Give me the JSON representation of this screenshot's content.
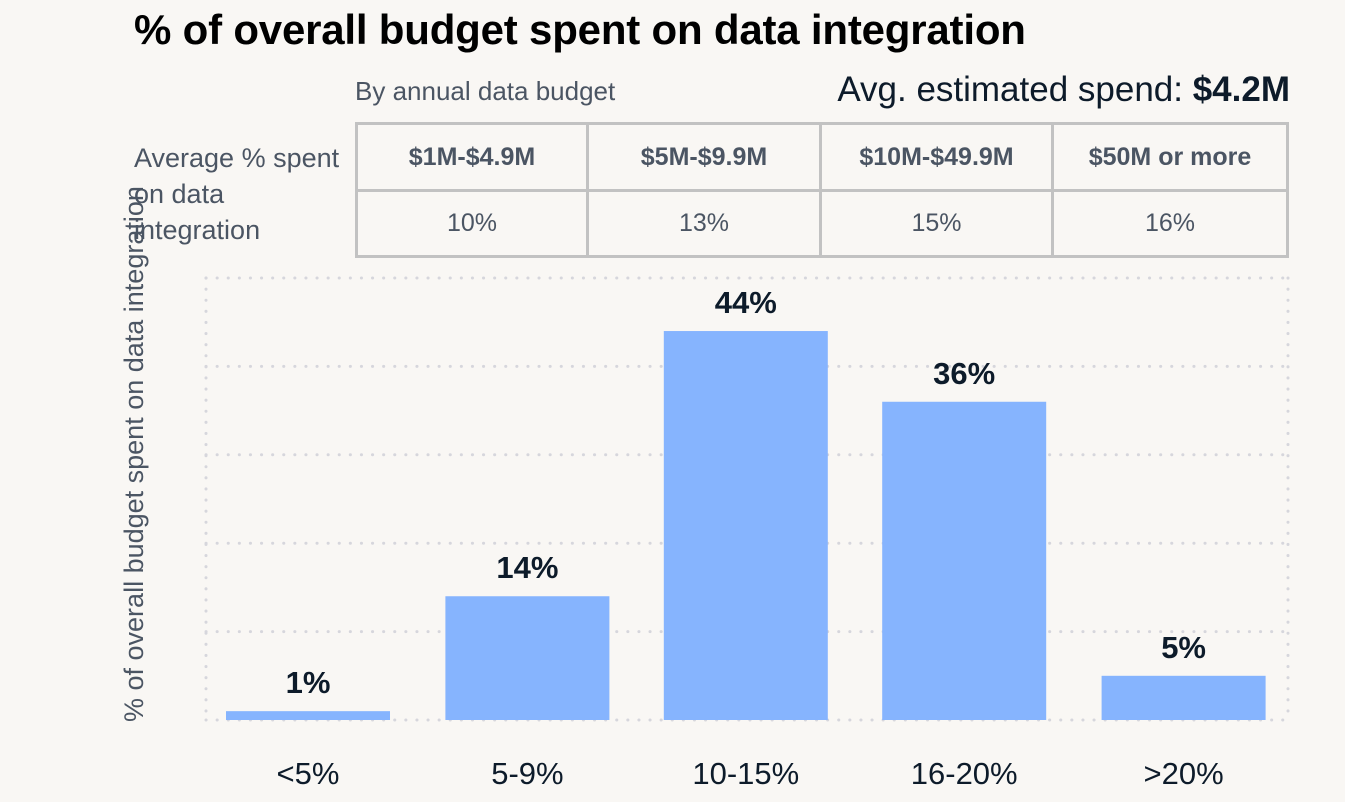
{
  "header": {
    "title": "% of overall budget spent on data integration",
    "subtitle": "By annual data budget",
    "avg_label": "Avg. estimated spend: ",
    "avg_value": "$4.2M"
  },
  "table": {
    "row_label": "Average % spent on data integration",
    "columns": [
      "$1M-$4.9M",
      "$5M-$9.9M",
      "$10M-$49.9M",
      "$50M or more"
    ],
    "values": [
      "10%",
      "13%",
      "15%",
      "16%"
    ]
  },
  "colors": {
    "bar": "#86b4fe",
    "grid": "#d6d6dc",
    "label": "#0d1b2a",
    "muted_text": "#4b5563",
    "table_border": "#c2c2c2",
    "background": "#f9f7f4"
  },
  "chart_data": {
    "type": "bar",
    "title": "% of overall budget spent on data integration",
    "xlabel": "",
    "ylabel": "% of overall budget spent on data integration",
    "categories": [
      "<5%",
      "5-9%",
      "10-15%",
      "16-20%",
      ">20%"
    ],
    "values": [
      1,
      14,
      44,
      36,
      5
    ],
    "value_labels": [
      "1%",
      "14%",
      "44%",
      "36%",
      "5%"
    ],
    "ylim": [
      0,
      50
    ],
    "grid": true,
    "grid_style": "dotted",
    "y_tick_labels_visible": false,
    "legend": "none"
  }
}
